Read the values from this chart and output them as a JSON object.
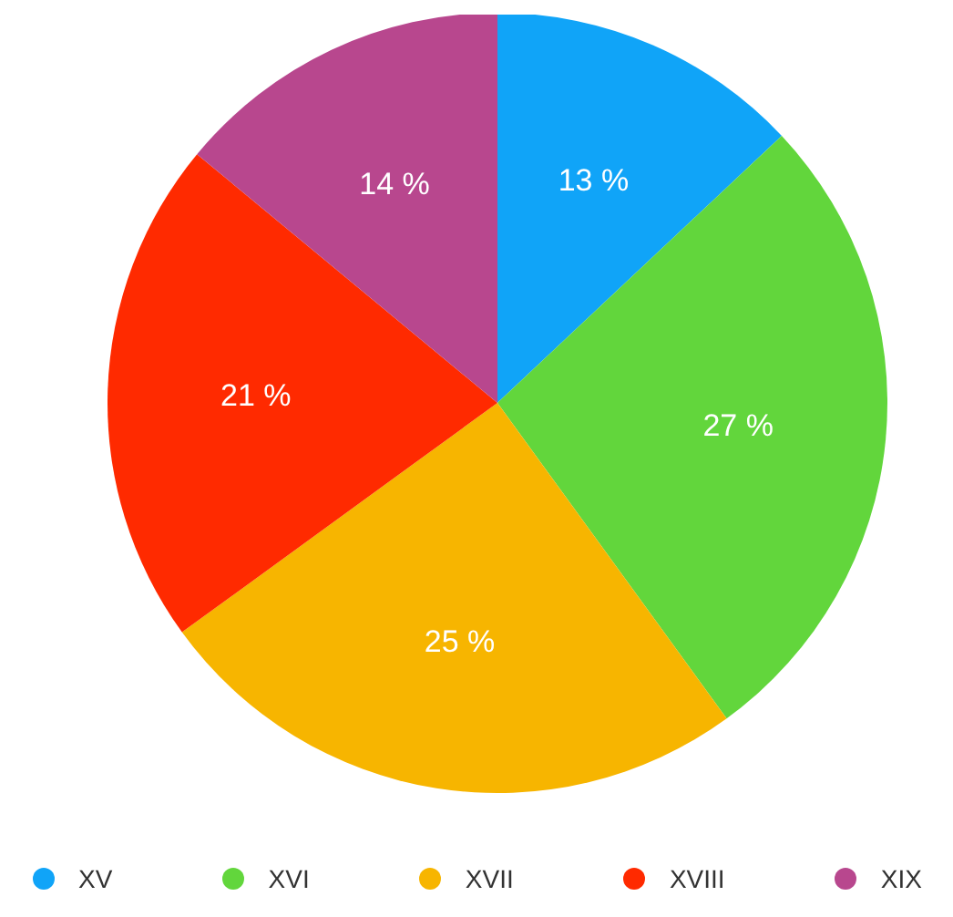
{
  "chart_data": {
    "type": "pie",
    "categories": [
      "XV",
      "XVI",
      "XVII",
      "XVIII",
      "XIX"
    ],
    "values": [
      13,
      27,
      25,
      21,
      14
    ],
    "colors": [
      "#10a4f8",
      "#62d63c",
      "#f7b500",
      "#ff2a00",
      "#b8478e"
    ],
    "value_labels": [
      "13 %",
      "27 %",
      "25 %",
      "21 %",
      "14 %"
    ],
    "legend": "bottom"
  }
}
